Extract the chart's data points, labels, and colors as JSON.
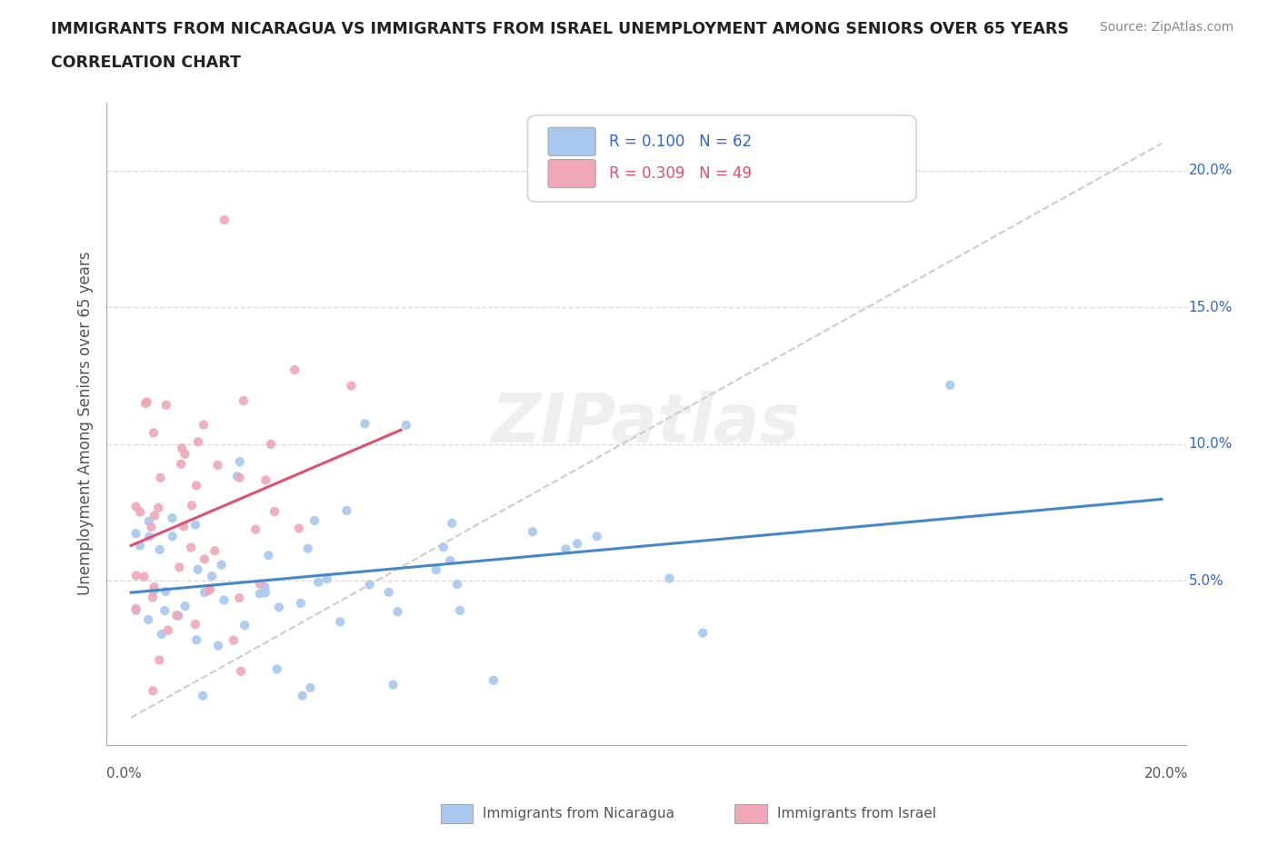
{
  "title_line1": "IMMIGRANTS FROM NICARAGUA VS IMMIGRANTS FROM ISRAEL UNEMPLOYMENT AMONG SENIORS OVER 65 YEARS",
  "title_line2": "CORRELATION CHART",
  "source": "Source: ZipAtlas.com",
  "ylabel": "Unemployment Among Seniors over 65 years",
  "yticks": [
    0.05,
    0.1,
    0.15,
    0.2
  ],
  "ytick_labels": [
    "5.0%",
    "10.0%",
    "15.0%",
    "20.0%"
  ],
  "xtick_left": "0.0%",
  "xtick_right": "20.0%",
  "legend_r1": "R = 0.100   N = 62",
  "legend_r2": "R = 0.309   N = 49",
  "color_nicaragua": "#a8c8f0",
  "color_israel": "#f0a8b8",
  "color_trendline_nicaragua": "#4488cc",
  "color_trendline_israel": "#e05070",
  "color_diagonal": "#cccccc",
  "watermark": "ZIPatlas",
  "legend_label1": "Immigrants from Nicaragua",
  "legend_label2": "Immigrants from Israel"
}
